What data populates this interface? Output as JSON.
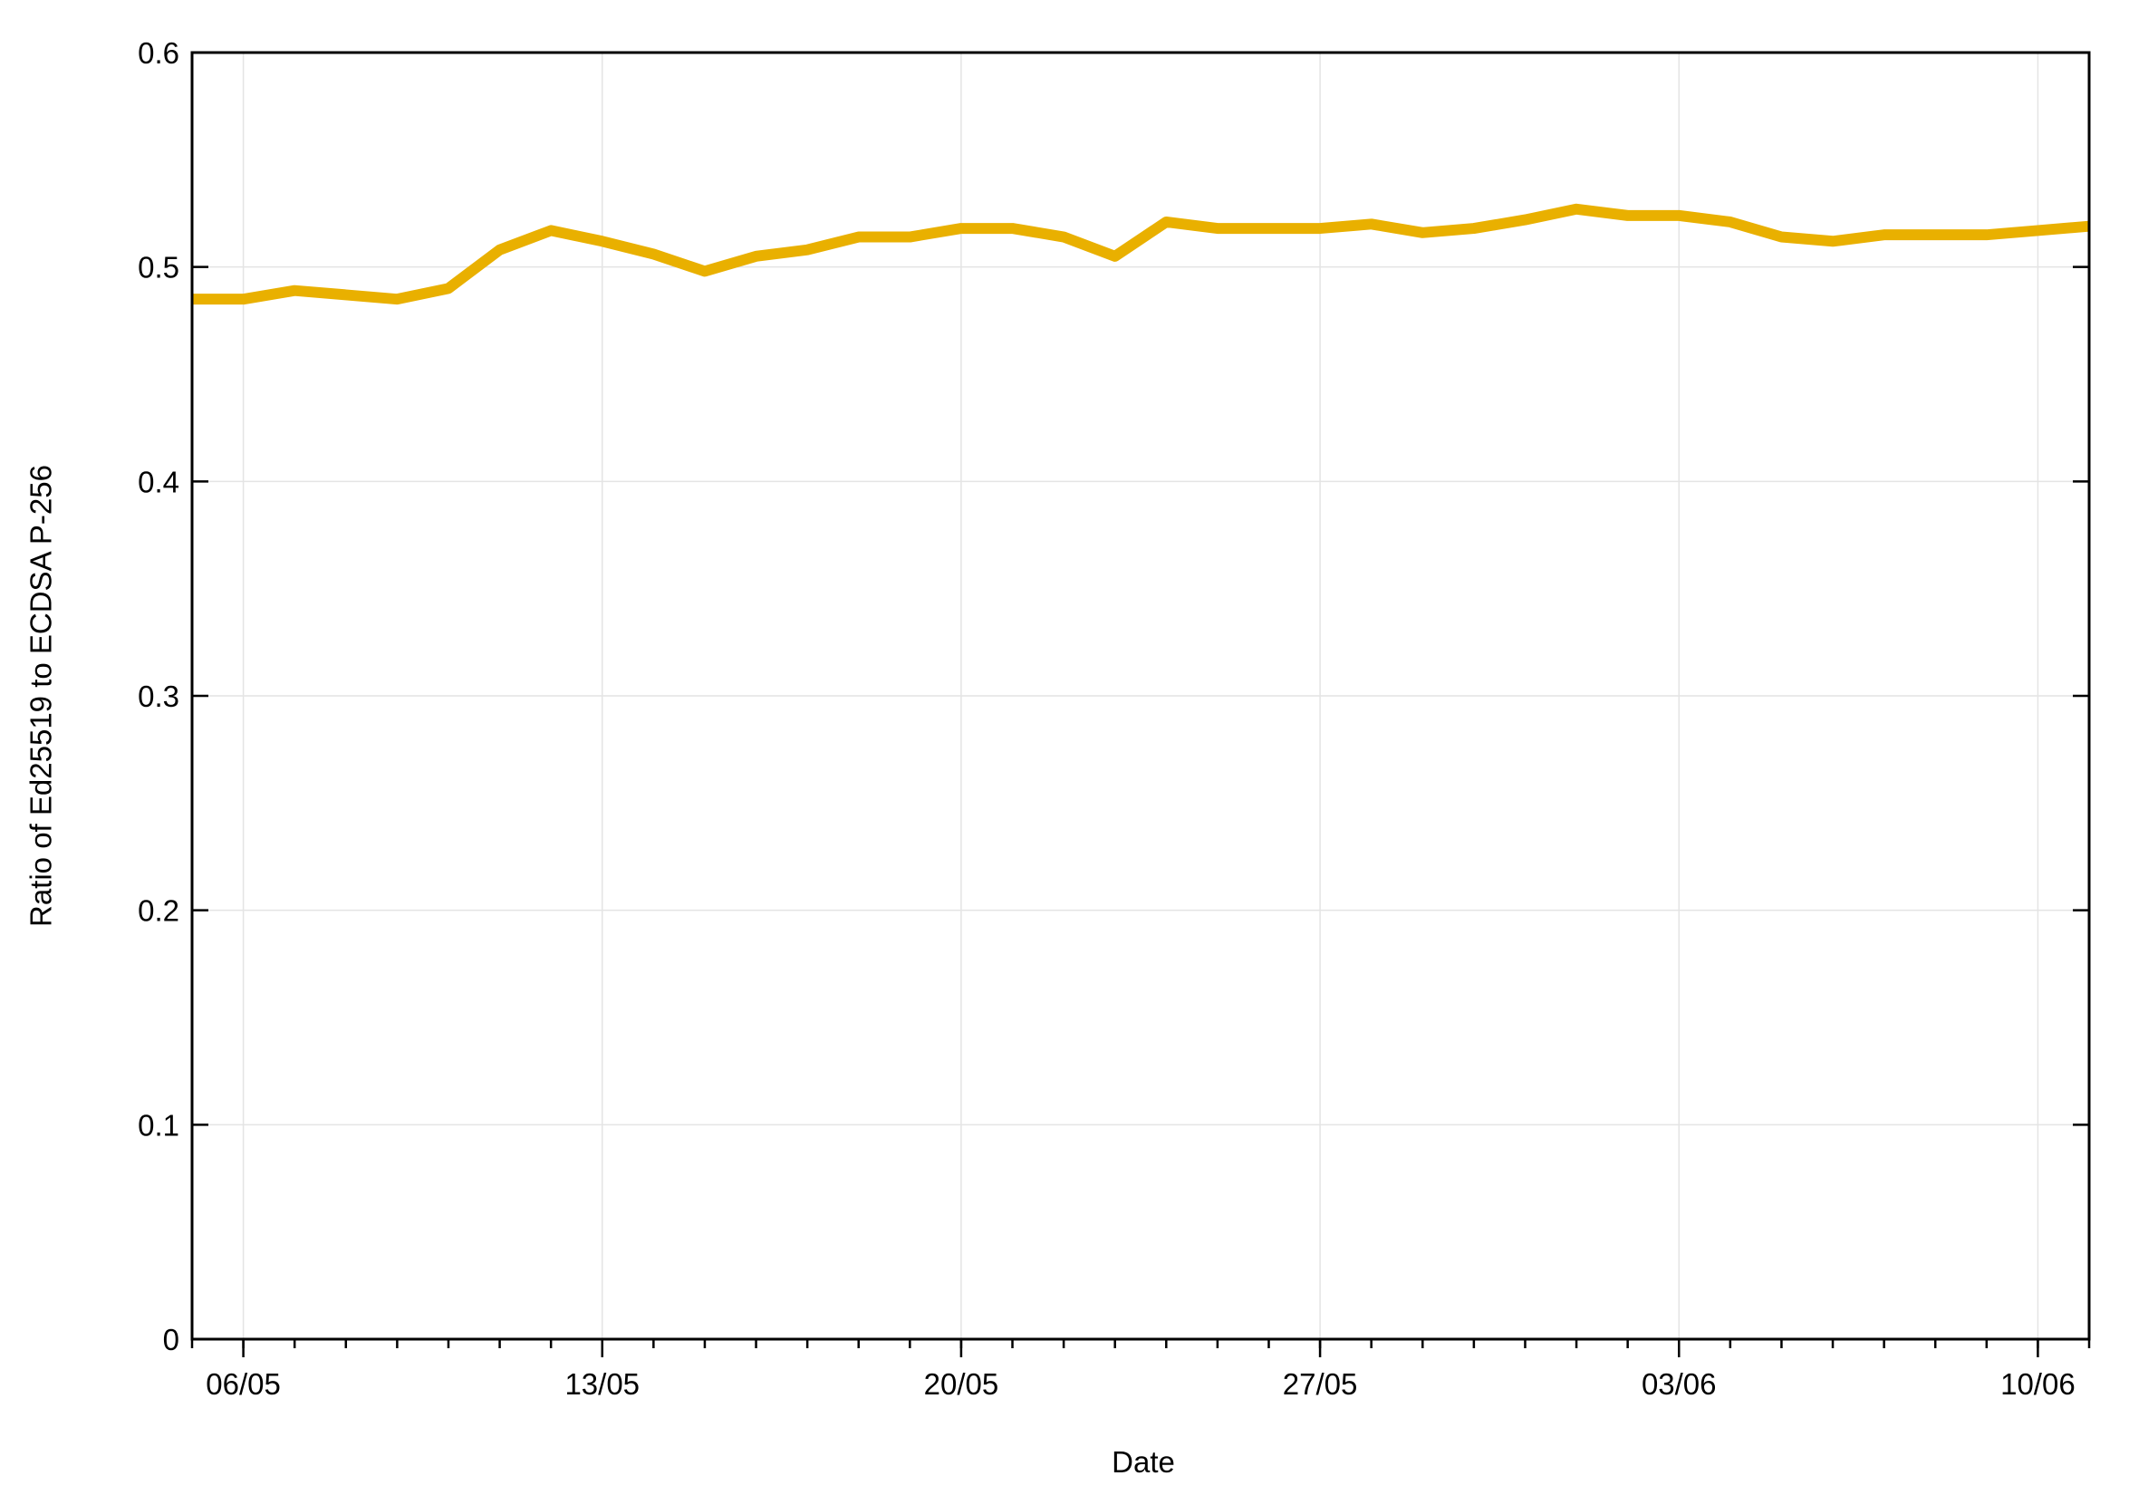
{
  "chart_data": {
    "type": "line",
    "xlabel": "Date",
    "ylabel": "Ratio of Ed25519 to ECDSA P-256",
    "x": [
      "05/05",
      "06/05",
      "07/05",
      "08/05",
      "09/05",
      "10/05",
      "11/05",
      "12/05",
      "13/05",
      "14/05",
      "15/05",
      "16/05",
      "17/05",
      "18/05",
      "19/05",
      "20/05",
      "21/05",
      "22/05",
      "23/05",
      "24/05",
      "25/05",
      "26/05",
      "27/05",
      "28/05",
      "29/05",
      "30/05",
      "31/05",
      "01/06",
      "02/06",
      "03/06",
      "04/06",
      "05/06",
      "06/06",
      "07/06",
      "08/06",
      "09/06",
      "10/06",
      "11/06"
    ],
    "series": [
      {
        "color": "#e9b000",
        "values": [
          0.485,
          0.485,
          0.489,
          0.487,
          0.485,
          0.49,
          0.508,
          0.517,
          0.512,
          0.506,
          0.498,
          0.505,
          0.508,
          0.514,
          0.514,
          0.518,
          0.518,
          0.514,
          0.505,
          0.521,
          0.518,
          0.518,
          0.518,
          0.52,
          0.516,
          0.518,
          0.522,
          0.527,
          0.524,
          0.524,
          0.521,
          0.514,
          0.512,
          0.515,
          0.515,
          0.515,
          0.517,
          0.519
        ]
      }
    ],
    "xticks": [
      "06/05",
      "13/05",
      "20/05",
      "27/05",
      "03/06",
      "10/06"
    ],
    "ylim": [
      0,
      0.6
    ],
    "yticks": [
      0,
      0.1,
      0.2,
      0.3,
      0.4,
      0.5,
      0.6
    ],
    "grid": true
  }
}
